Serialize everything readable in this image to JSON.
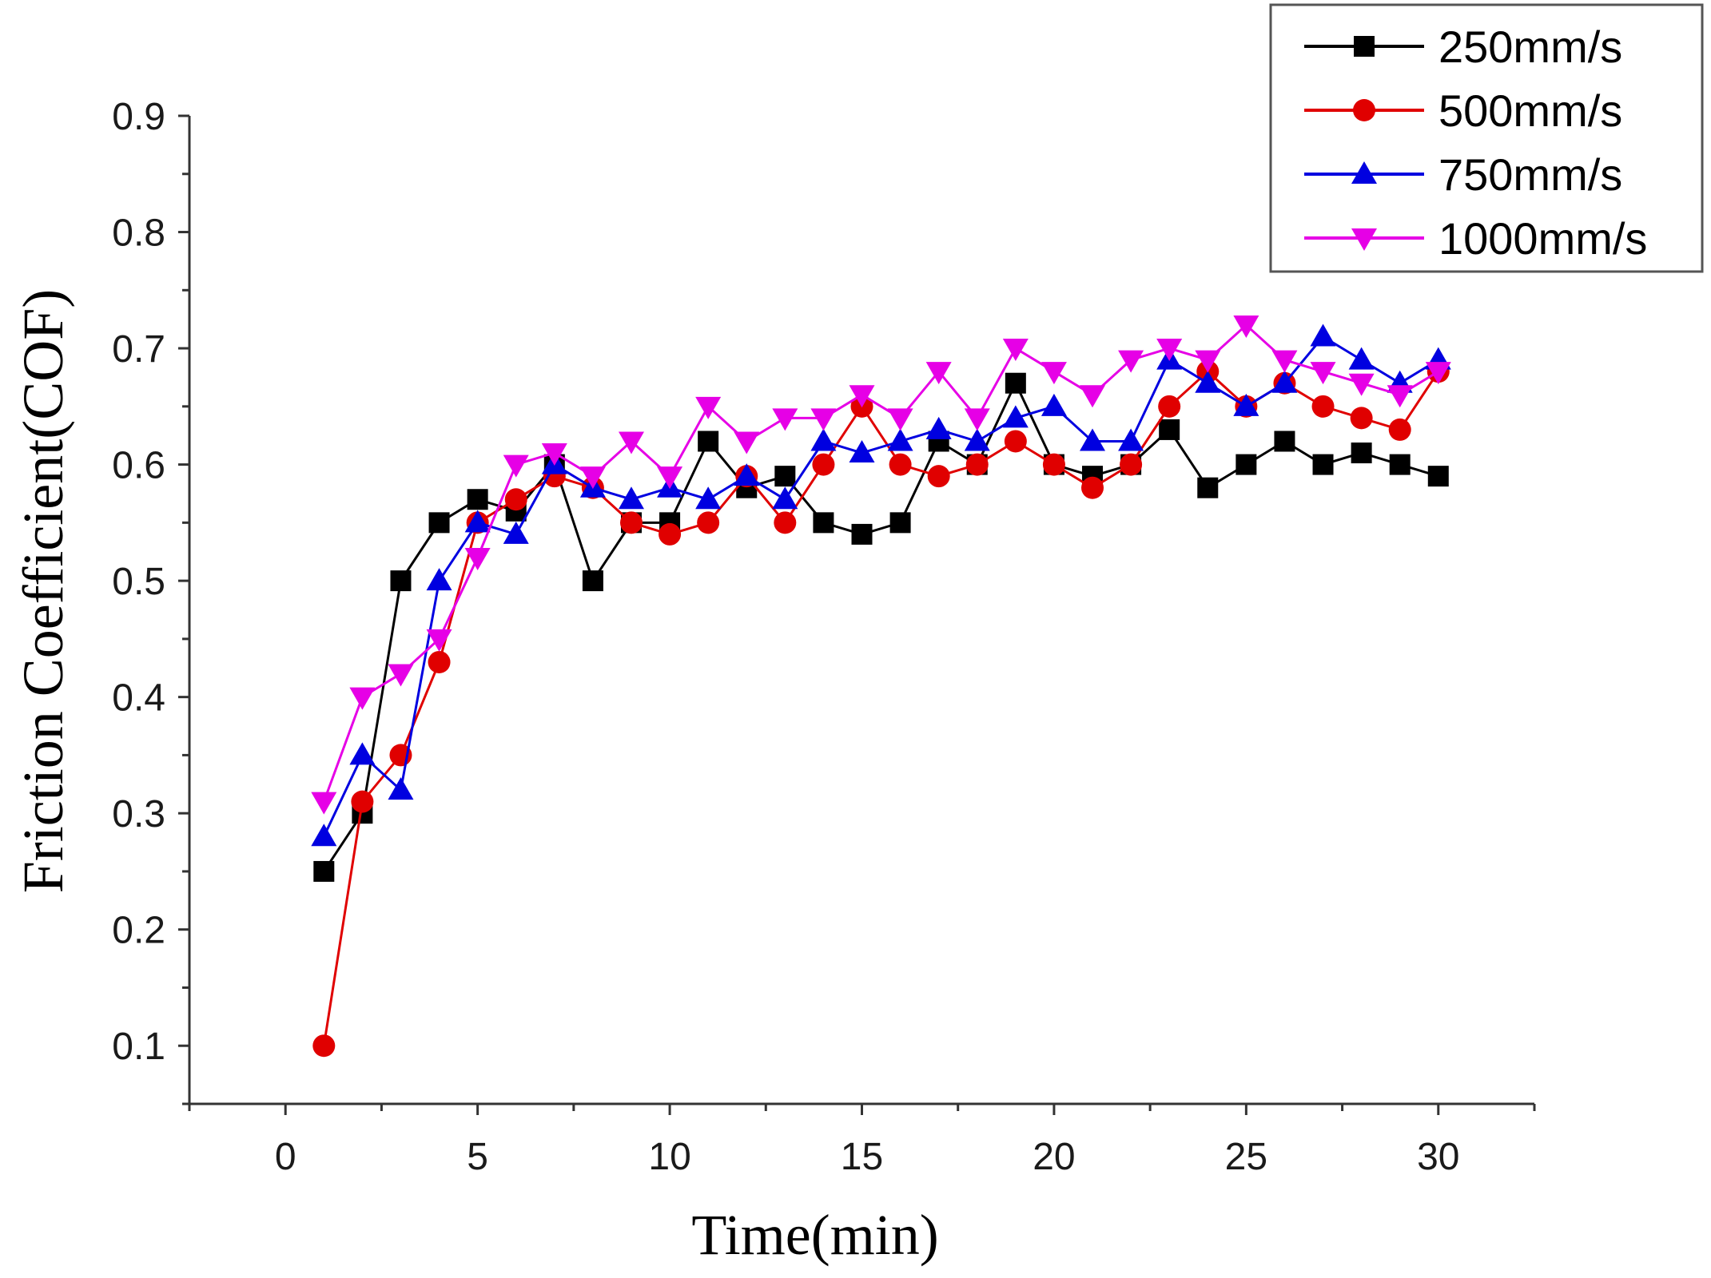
{
  "chart_data": {
    "type": "line",
    "title": "",
    "xlabel": "Time(min)",
    "ylabel": "Friction Coefficient(COF)",
    "xlim": [
      -2.5,
      32.5
    ],
    "ylim": [
      0.05,
      0.9
    ],
    "xticks": [
      0,
      5,
      10,
      15,
      20,
      25,
      30
    ],
    "yticks": [
      0.1,
      0.2,
      0.3,
      0.4,
      0.5,
      0.6,
      0.7,
      0.8,
      0.9
    ],
    "xtick_labels": [
      "0",
      "5",
      "10",
      "15",
      "20",
      "25",
      "30"
    ],
    "ytick_labels": [
      "0.1",
      "0.2",
      "0.3",
      "0.4",
      "0.5",
      "0.6",
      "0.7",
      "0.8",
      "0.9"
    ],
    "grid": false,
    "legend_position": "top-right",
    "x": [
      1,
      2,
      3,
      4,
      5,
      6,
      7,
      8,
      9,
      10,
      11,
      12,
      13,
      14,
      15,
      16,
      17,
      18,
      19,
      20,
      21,
      22,
      23,
      24,
      25,
      26,
      27,
      28,
      29,
      30
    ],
    "series": [
      {
        "name": "250mm/s",
        "color": "#000000",
        "marker": "square",
        "values": [
          0.25,
          0.3,
          0.5,
          0.55,
          0.57,
          0.56,
          0.6,
          0.5,
          0.55,
          0.55,
          0.62,
          0.58,
          0.59,
          0.55,
          0.54,
          0.55,
          0.62,
          0.6,
          0.67,
          0.6,
          0.59,
          0.6,
          0.63,
          0.58,
          0.6,
          0.62,
          0.6,
          0.61,
          0.6,
          0.59
        ]
      },
      {
        "name": "500mm/s",
        "color": "#e00000",
        "marker": "circle",
        "values": [
          0.1,
          0.31,
          0.35,
          0.43,
          0.55,
          0.57,
          0.59,
          0.58,
          0.55,
          0.54,
          0.55,
          0.59,
          0.55,
          0.6,
          0.65,
          0.6,
          0.59,
          0.6,
          0.62,
          0.6,
          0.58,
          0.6,
          0.65,
          0.68,
          0.65,
          0.67,
          0.65,
          0.64,
          0.63,
          0.68
        ]
      },
      {
        "name": "750mm/s",
        "color": "#0000e0",
        "marker": "triangle-up",
        "values": [
          0.28,
          0.35,
          0.32,
          0.5,
          0.55,
          0.54,
          0.6,
          0.58,
          0.57,
          0.58,
          0.57,
          0.59,
          0.57,
          0.62,
          0.61,
          0.62,
          0.63,
          0.62,
          0.64,
          0.65,
          0.62,
          0.62,
          0.69,
          0.67,
          0.65,
          0.67,
          0.71,
          0.69,
          0.67,
          0.69
        ]
      },
      {
        "name": "1000mm/s",
        "color": "#e600e6",
        "marker": "triangle-down",
        "values": [
          0.31,
          0.4,
          0.42,
          0.45,
          0.52,
          0.6,
          0.61,
          0.59,
          0.62,
          0.59,
          0.65,
          0.62,
          0.64,
          0.64,
          0.66,
          0.64,
          0.68,
          0.64,
          0.7,
          0.68,
          0.66,
          0.69,
          0.7,
          0.69,
          0.72,
          0.69,
          0.68,
          0.67,
          0.66,
          0.68
        ]
      }
    ]
  }
}
